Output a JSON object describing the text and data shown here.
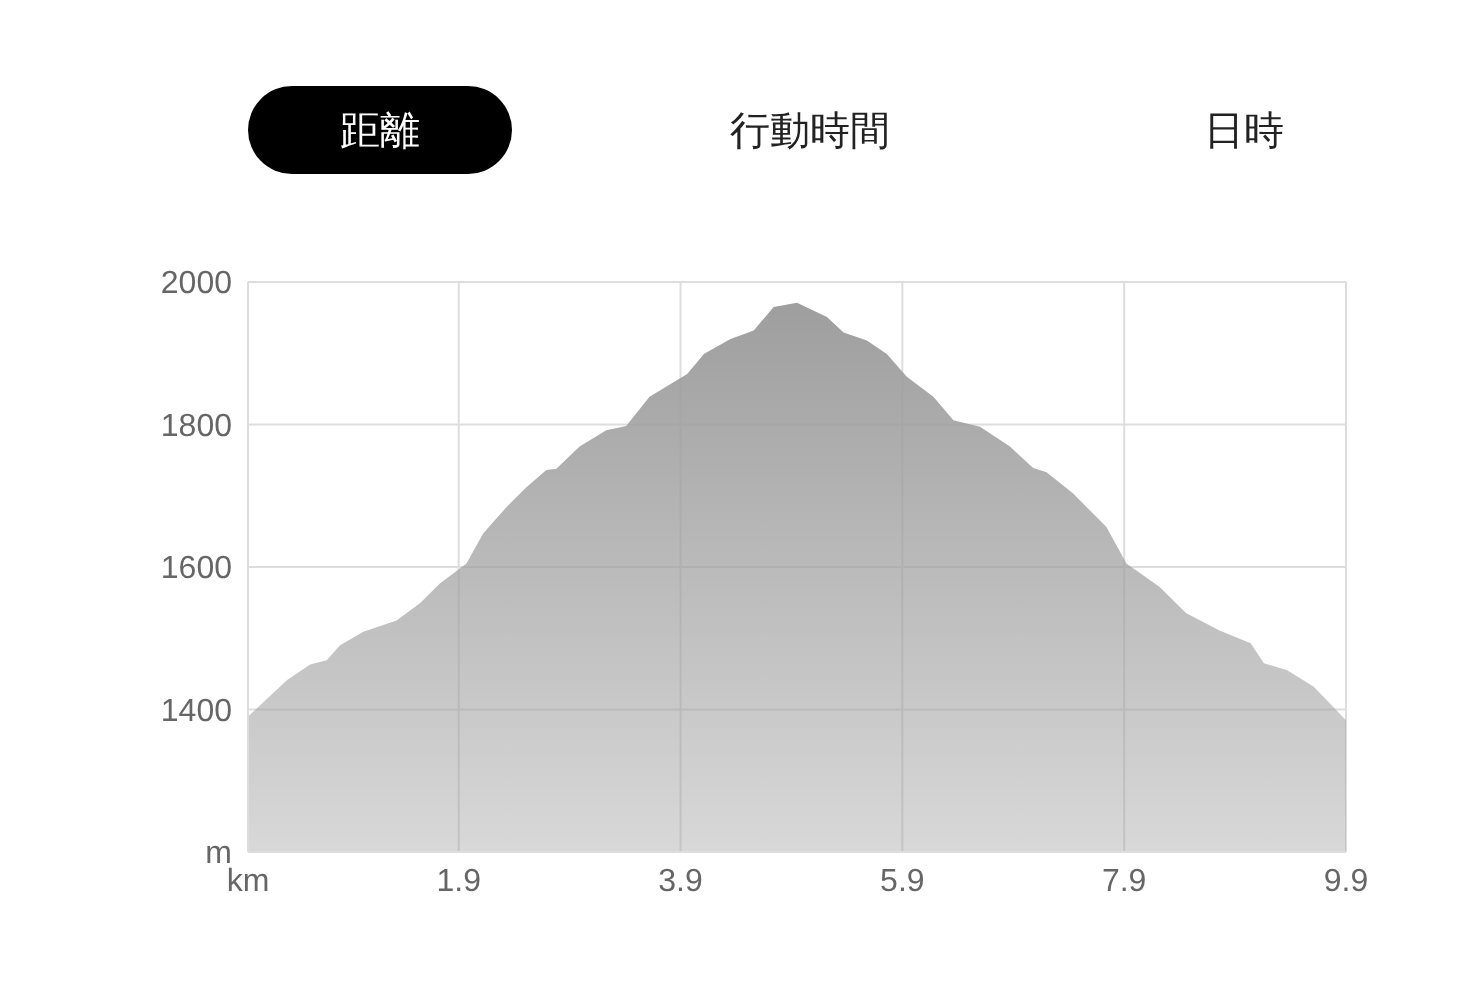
{
  "chart_data": {
    "type": "area",
    "annotations": [
      "距離",
      "行動時間",
      "日時"
    ],
    "x": [
      0,
      0.35,
      0.56,
      0.71,
      0.83,
      1.04,
      1.34,
      1.55,
      1.73,
      1.97,
      2.12,
      2.33,
      2.51,
      2.69,
      2.78,
      2.99,
      3.23,
      3.41,
      3.62,
      3.96,
      4.11,
      4.35,
      4.56,
      4.74,
      4.95,
      5.22,
      5.37,
      5.58,
      5.76,
      5.94,
      6.18,
      6.36,
      6.6,
      6.87,
      7.08,
      7.2,
      7.44,
      7.74,
      7.92,
      8.22,
      8.46,
      8.76,
      9.04,
      9.16,
      9.37,
      9.61,
      9.9
    ],
    "series": [
      {
        "color": "#9e9e9e",
        "values": [
          1390,
          1441,
          1463,
          1469,
          1490,
          1509,
          1525,
          1549,
          1577,
          1605,
          1647,
          1684,
          1712,
          1736,
          1738,
          1769,
          1792,
          1798,
          1839,
          1871,
          1899,
          1920,
          1932,
          1965,
          1971,
          1951,
          1929,
          1918,
          1899,
          1867,
          1839,
          1806,
          1797,
          1769,
          1739,
          1733,
          1703,
          1656,
          1605,
          1572,
          1535,
          1511,
          1493,
          1465,
          1455,
          1432,
          1385
        ]
      }
    ],
    "xlim": [
      0,
      9.9
    ],
    "xticks": [
      {
        "value": 0,
        "label": "km"
      },
      1.9,
      3.9,
      5.9,
      7.9,
      9.9
    ],
    "ylim": [
      1200,
      2000
    ],
    "yticks": [
      {
        "value": 1200,
        "label": "m"
      },
      1400,
      1600,
      1800,
      2000
    ],
    "grid": true
  }
}
